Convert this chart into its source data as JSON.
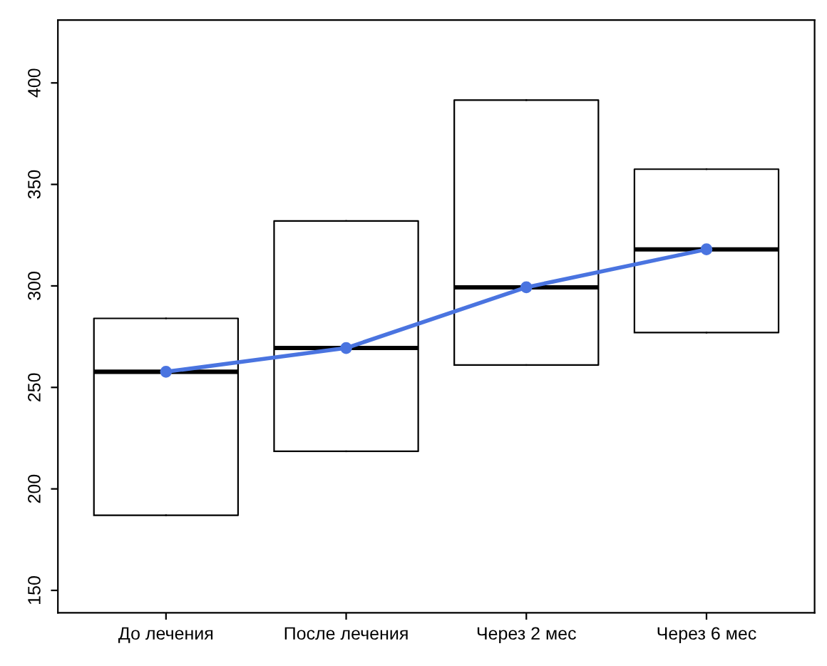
{
  "chart_data": {
    "type": "box",
    "categories": [
      "До лечения",
      "После лечения",
      "Через 2 мес",
      "Через 6 мес"
    ],
    "boxes": [
      {
        "low": 187,
        "q1": 187,
        "median": 257.7,
        "q3": 284,
        "high": 284
      },
      {
        "low": 218.5,
        "q1": 218.5,
        "median": 269.4,
        "q3": 332,
        "high": 332
      },
      {
        "low": 261,
        "q1": 261,
        "median": 299.3,
        "q3": 391.5,
        "high": 391.5
      },
      {
        "low": 277,
        "q1": 277,
        "median": 318,
        "q3": 357.5,
        "high": 357.5
      }
    ],
    "series": [
      {
        "type": "line",
        "color": "#4a74e0",
        "values": [
          257.7,
          269.4,
          299.3,
          318
        ]
      }
    ],
    "marker": "circle",
    "line_style": "solid",
    "ylim": [
      139,
      431
    ],
    "yticks": [
      150,
      200,
      250,
      300,
      350,
      400
    ],
    "grid": false,
    "legend": false
  }
}
